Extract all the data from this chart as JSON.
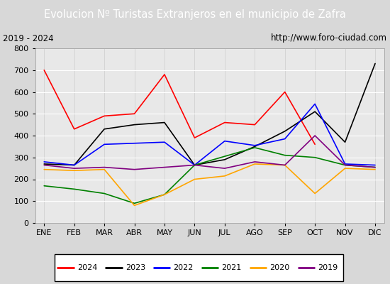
{
  "title": "Evolucion Nº Turistas Extranjeros en el municipio de Zafra",
  "subtitle_left": "2019 - 2024",
  "subtitle_right": "http://www.foro-ciudad.com",
  "months": [
    "ENE",
    "FEB",
    "MAR",
    "ABR",
    "MAY",
    "JUN",
    "JUL",
    "AGO",
    "SEP",
    "OCT",
    "NOV",
    "DIC"
  ],
  "series": {
    "2024": {
      "color": "red",
      "data": [
        700,
        430,
        490,
        500,
        680,
        390,
        460,
        450,
        600,
        360,
        null,
        null
      ]
    },
    "2023": {
      "color": "black",
      "data": [
        270,
        265,
        430,
        450,
        460,
        265,
        290,
        350,
        420,
        510,
        370,
        730
      ]
    },
    "2022": {
      "color": "blue",
      "data": [
        280,
        265,
        360,
        365,
        370,
        265,
        375,
        355,
        385,
        545,
        270,
        265
      ]
    },
    "2021": {
      "color": "green",
      "data": [
        170,
        155,
        135,
        90,
        130,
        265,
        305,
        345,
        310,
        300,
        265,
        255
      ]
    },
    "2020": {
      "color": "orange",
      "data": [
        245,
        240,
        245,
        80,
        130,
        200,
        215,
        270,
        265,
        135,
        250,
        245
      ]
    },
    "2019": {
      "color": "purple",
      "data": [
        265,
        250,
        255,
        245,
        255,
        265,
        250,
        280,
        265,
        400,
        265,
        255
      ]
    }
  },
  "ylim": [
    0,
    800
  ],
  "yticks": [
    0,
    100,
    200,
    300,
    400,
    500,
    600,
    700,
    800
  ],
  "plot_bg_color": "#e8e8e8",
  "fig_bg_color": "#d8d8d8",
  "title_bg": "#5b9bd5",
  "title_color": "white",
  "title_fontsize": 10.5,
  "subtitle_fontsize": 8.5,
  "tick_fontsize": 8,
  "legend_order": [
    "2024",
    "2023",
    "2022",
    "2021",
    "2020",
    "2019"
  ]
}
